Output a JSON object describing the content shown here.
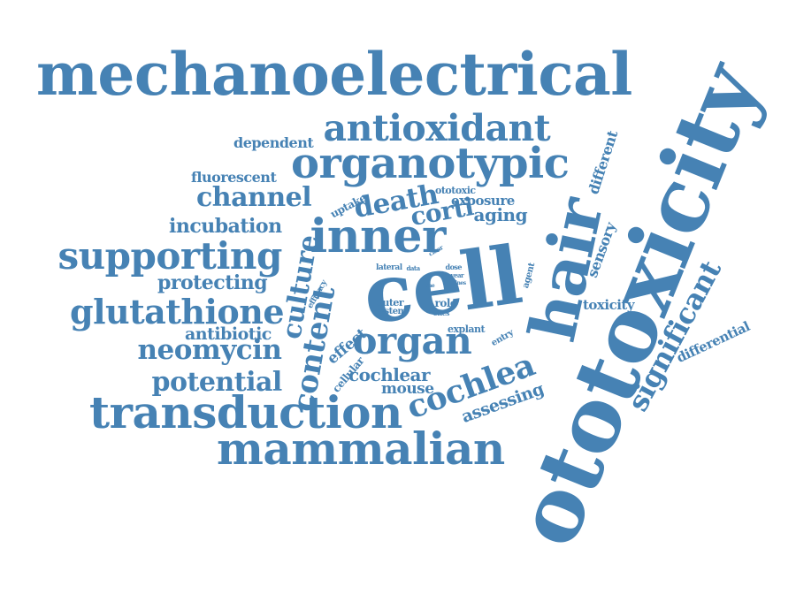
{
  "colors": {
    "word": "#4682B4",
    "background": "#ffffff"
  },
  "words": [
    {
      "text": "mechanoelectrical"
    },
    {
      "text": "ototoxicity"
    },
    {
      "text": "cell"
    },
    {
      "text": "hair"
    },
    {
      "text": "organotypic"
    },
    {
      "text": "antioxidant"
    },
    {
      "text": "inner"
    },
    {
      "text": "supporting"
    },
    {
      "text": "glutathione"
    },
    {
      "text": "transduction"
    },
    {
      "text": "mammalian"
    },
    {
      "text": "channel"
    },
    {
      "text": "death"
    },
    {
      "text": "corti"
    },
    {
      "text": "culture"
    },
    {
      "text": "content"
    },
    {
      "text": "organ"
    },
    {
      "text": "cochlea"
    },
    {
      "text": "neomycin"
    },
    {
      "text": "potential"
    },
    {
      "text": "significant"
    },
    {
      "text": "incubation"
    },
    {
      "text": "protecting"
    },
    {
      "text": "antibiotic"
    },
    {
      "text": "fluorescent"
    },
    {
      "text": "dependent"
    },
    {
      "text": "aging"
    },
    {
      "text": "exposure"
    },
    {
      "text": "ototoxic"
    },
    {
      "text": "different"
    },
    {
      "text": "uptake"
    },
    {
      "text": "sensory"
    },
    {
      "text": "toxicity"
    },
    {
      "text": "differential"
    },
    {
      "text": "assessing"
    },
    {
      "text": "cochlear"
    },
    {
      "text": "mouse"
    },
    {
      "text": "cellular"
    },
    {
      "text": "effect"
    },
    {
      "text": "outer"
    },
    {
      "text": "system"
    },
    {
      "text": "role"
    },
    {
      "text": "ohcs"
    },
    {
      "text": "explant"
    },
    {
      "text": "entry"
    },
    {
      "text": "agent"
    },
    {
      "text": "efficacy"
    },
    {
      "text": "lateral"
    },
    {
      "text": "data"
    },
    {
      "text": "dose"
    },
    {
      "text": "year"
    },
    {
      "text": "clear"
    },
    {
      "text": "line"
    },
    {
      "text": "lines"
    }
  ]
}
